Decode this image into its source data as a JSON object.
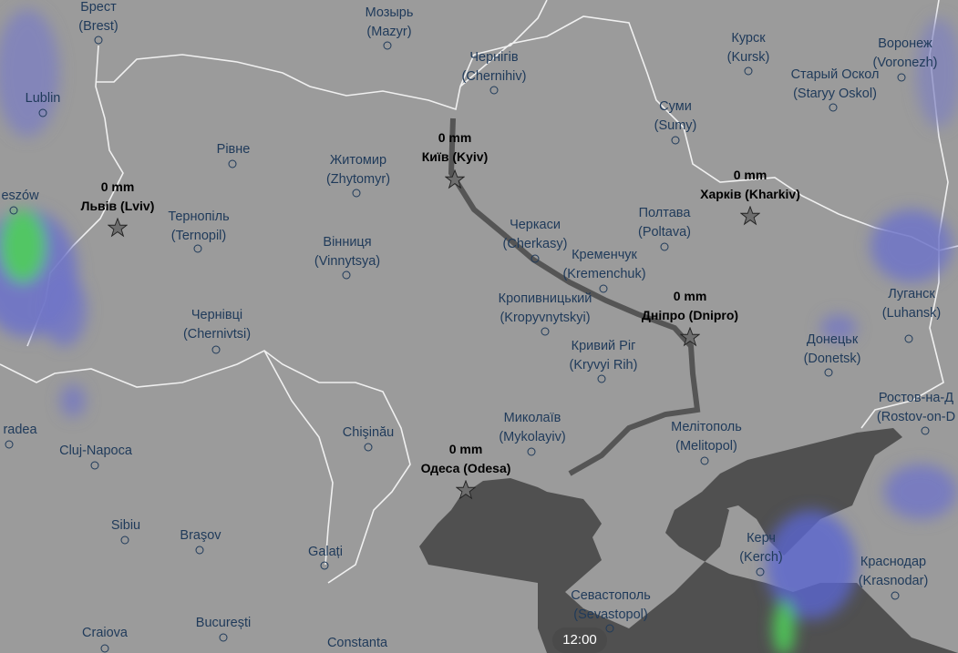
{
  "map": {
    "colors": {
      "land": "#9b9b9b",
      "sea": "#505050",
      "border": "#f2f2f2",
      "city_text": "#1f3a5a",
      "rain_light": "#6f74c8",
      "rain_heavy": "#4fcf5a"
    },
    "cities": [
      {
        "name": "Брест",
        "sub": "(Brest)"
      },
      {
        "name": "Мозырь",
        "sub": "(Mazyr)"
      },
      {
        "name": "Чернігів",
        "sub": "(Chernihiv)"
      },
      {
        "name": "Курск",
        "sub": "(Kursk)"
      },
      {
        "name": "Воронеж",
        "sub": "(Voronezh)"
      },
      {
        "name": "Старый Оскол",
        "sub": "(Staryy Oskol)"
      },
      {
        "name": "Lublin",
        "sub": ""
      },
      {
        "name": "Суми",
        "sub": "(Sumy)"
      },
      {
        "name": "Рівне",
        "sub": ""
      },
      {
        "name": "Житомир",
        "sub": "(Zhytomyr)"
      },
      {
        "name": "eszów",
        "sub": ""
      },
      {
        "name": "Тернопіль",
        "sub": "(Ternopil)"
      },
      {
        "name": "Полтава",
        "sub": "(Poltava)"
      },
      {
        "name": "Черкаси",
        "sub": "(Cherkasy)"
      },
      {
        "name": "Вінниця",
        "sub": "(Vinnytsya)"
      },
      {
        "name": "Кременчук",
        "sub": "(Kremenchuk)"
      },
      {
        "name": "Кропивницький",
        "sub": "(Kropyvnytskyi)"
      },
      {
        "name": "Луганск",
        "sub": "(Luhansk)"
      },
      {
        "name": "Чернівці",
        "sub": "(Chernivtsi)"
      },
      {
        "name": "Кривий Ріг",
        "sub": "(Kryvyi Rih)"
      },
      {
        "name": "Донецьк",
        "sub": "(Donetsk)"
      },
      {
        "name": "Ростов-на-Д",
        "sub": "(Rostov-on-D"
      },
      {
        "name": "radea",
        "sub": ""
      },
      {
        "name": "Cluj-Napoca",
        "sub": ""
      },
      {
        "name": "Chişinău",
        "sub": ""
      },
      {
        "name": "Миколаїв",
        "sub": "(Mykolayiv)"
      },
      {
        "name": "Мелітополь",
        "sub": "(Melitopol)"
      },
      {
        "name": "Sibiu",
        "sub": ""
      },
      {
        "name": "Braşov",
        "sub": ""
      },
      {
        "name": "Galați",
        "sub": ""
      },
      {
        "name": "Керч",
        "sub": "(Kerch)"
      },
      {
        "name": "Краснодар",
        "sub": "(Krasnodar)"
      },
      {
        "name": "Севастополь",
        "sub": "(Sevastopol)"
      },
      {
        "name": "Craiova",
        "sub": ""
      },
      {
        "name": "București",
        "sub": ""
      },
      {
        "name": "Constanta",
        "sub": ""
      }
    ],
    "favorites": [
      {
        "amount": "0 mm",
        "name": "Київ (Kyiv)"
      },
      {
        "amount": "0 mm",
        "name": "Львів (Lviv)"
      },
      {
        "amount": "0 mm",
        "name": "Харків (Kharkiv)"
      },
      {
        "amount": "0 mm",
        "name": "Дніпро (Dnipro)"
      },
      {
        "amount": "0 mm",
        "name": "Одеса (Odesa)"
      }
    ]
  },
  "timeline": {
    "time": "12:00"
  }
}
